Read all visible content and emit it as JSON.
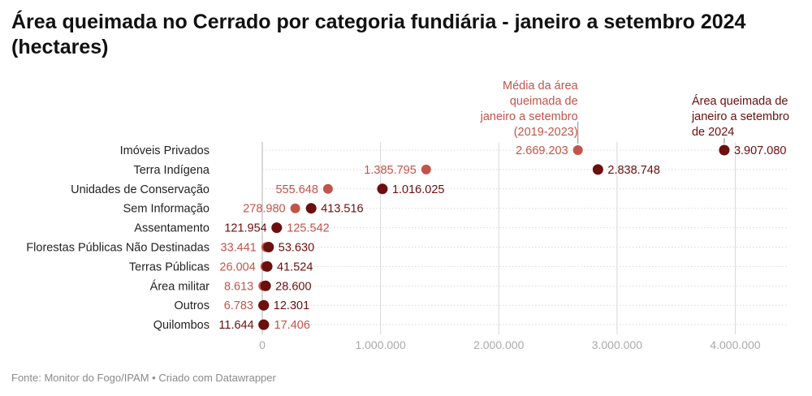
{
  "title": "Área queimada no Cerrado por categoria fundiária - janeiro a setembro 2024 (hectares)",
  "footer": "Fonte: Monitor do Fogo/IPAM • Criado com Datawrapper",
  "chart_data": {
    "type": "dumbbell",
    "title": "Área queimada no Cerrado por categoria fundiária - janeiro a setembro 2024 (hectares)",
    "categories": [
      "Imóveis Privados",
      "Terra Indígena",
      "Unidades de Conservação",
      "Sem Informação",
      "Assentamento",
      "Florestas Públicas Não Destinadas",
      "Terras Públicas",
      "Área militar",
      "Outros",
      "Quilombos"
    ],
    "series": [
      {
        "name": "Média da área queimada de janeiro a setembro (2019-2023)",
        "values": [
          2669203,
          1385795,
          555648,
          278980,
          125542,
          33441,
          26004,
          8613,
          6783,
          17406
        ],
        "labels": [
          "2.669.203",
          "1.385.795",
          "555.648",
          "278.980",
          "125.542",
          "33.441",
          "26.004",
          "8.613",
          "6.783",
          "17.406"
        ],
        "color": "#c0554a"
      },
      {
        "name": "Área queimada de janeiro a setembro de 2024",
        "values": [
          3907080,
          2838748,
          1016025,
          413516,
          121954,
          53630,
          41524,
          28600,
          12301,
          11644
        ],
        "labels": [
          "3.907.080",
          "2.838.748",
          "1.016.025",
          "413.516",
          "121.954",
          "53.630",
          "41.524",
          "28.600",
          "12.301",
          "11.644"
        ],
        "color": "#6b0f0f"
      }
    ],
    "annotations": [
      {
        "text": [
          "Média da área",
          "queimada de",
          "janeiro a setembro",
          "(2019-2023)"
        ],
        "color": "#c0554a"
      },
      {
        "text": [
          "Área queimada de",
          "janeiro a setembro",
          "de 2024"
        ],
        "color": "#6b0f0f"
      }
    ],
    "x_ticks": [
      0,
      1000000,
      2000000,
      3000000,
      4000000
    ],
    "x_tick_labels": [
      "0",
      "1.000.000",
      "2.000.000",
      "3.000.000",
      "4.000.000"
    ],
    "xlim": [
      0,
      4500000
    ],
    "grid": true,
    "colors": {
      "avg": "#c0554a",
      "current": "#6b0f0f",
      "grid": "#d9d9d9",
      "tick": "#aaaaaa"
    }
  }
}
